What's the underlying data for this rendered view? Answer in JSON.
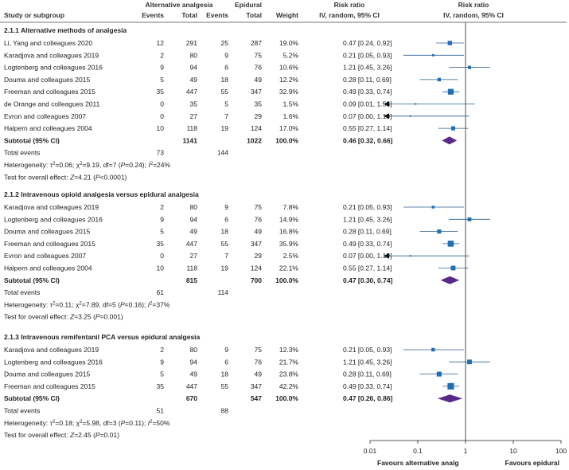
{
  "chart_data": {
    "type": "forest",
    "header": {
      "study": "Study or subgroup",
      "alt_group": "Alternative analgesia",
      "epi_group": "Epidural",
      "events": "Events",
      "total": "Total",
      "weight": "Weight",
      "rr_title": "Risk ratio",
      "rr_method": "IV, random, 95% CI",
      "plot_title": "Risk ratio",
      "plot_method": "IV, random, 95% CI"
    },
    "axis": {
      "scale": "log",
      "min": 0.01,
      "max": 100,
      "ticks": [
        0.01,
        0.1,
        1,
        10,
        100
      ],
      "tick_labels": [
        "0.01",
        "0.1",
        "1",
        "10",
        "100"
      ],
      "null_value": 1,
      "left_label": "Favours alternative analg",
      "right_label": "Favours epidural"
    },
    "subgroups": [
      {
        "title": "2.1.1 Alternative methods of analgesia",
        "studies": [
          {
            "name": "Li, Yang and colleagues 2020",
            "e1": "12",
            "n1": "291",
            "e2": "25",
            "n2": "287",
            "weight": "19.0%",
            "ci_text": "0.47 [0.24, 0.92]",
            "rr": 0.47,
            "lo": 0.24,
            "hi": 0.92,
            "w": 19.0
          },
          {
            "name": "Karadjova and colleagues 2019",
            "e1": "2",
            "n1": "80",
            "e2": "9",
            "n2": "75",
            "weight": "5.2%",
            "ci_text": "0.21 [0.05, 0.93]",
            "rr": 0.21,
            "lo": 0.05,
            "hi": 0.93,
            "w": 5.2
          },
          {
            "name": "Logtenberg and colleagues 2016",
            "e1": "9",
            "n1": "94",
            "e2": "6",
            "n2": "76",
            "weight": "10.6%",
            "ci_text": "1.21 [0.45, 3.26]",
            "rr": 1.21,
            "lo": 0.45,
            "hi": 3.26,
            "w": 10.6
          },
          {
            "name": "Douma and colleagues 2015",
            "e1": "5",
            "n1": "49",
            "e2": "18",
            "n2": "49",
            "weight": "12.2%",
            "ci_text": "0.28 [0.11, 0.69]",
            "rr": 0.28,
            "lo": 0.11,
            "hi": 0.69,
            "w": 12.2
          },
          {
            "name": "Freeman and colleagues 2015",
            "e1": "35",
            "n1": "447",
            "e2": "55",
            "n2": "347",
            "weight": "32.9%",
            "ci_text": "0.49 [0.33, 0.74]",
            "rr": 0.49,
            "lo": 0.33,
            "hi": 0.74,
            "w": 32.9
          },
          {
            "name": "de Orange and colleagues 2011",
            "e1": "0",
            "n1": "35",
            "e2": "5",
            "n2": "35",
            "weight": "1.5%",
            "ci_text": "0.09 [0.01, 1.58]",
            "rr": 0.09,
            "lo": 0.005,
            "hi": 1.58,
            "w": 1.5,
            "arrow_left": true
          },
          {
            "name": "Evron and colleagues 2007",
            "e1": "0",
            "n1": "27",
            "e2": "7",
            "n2": "29",
            "weight": "1.6%",
            "ci_text": "0.07 [0.00, 1.19]",
            "rr": 0.07,
            "lo": 0.004,
            "hi": 1.19,
            "w": 1.6,
            "arrow_left": true
          },
          {
            "name": "Halpern and colleagues 2004",
            "e1": "10",
            "n1": "118",
            "e2": "19",
            "n2": "124",
            "weight": "17.0%",
            "ci_text": "0.55 [0.27, 1.14]",
            "rr": 0.55,
            "lo": 0.27,
            "hi": 1.14,
            "w": 17.0
          }
        ],
        "subtotal": {
          "label": "Subtotal (95% CI)",
          "n1": "1141",
          "n2": "1022",
          "weight": "100.0%",
          "ci_text": "0.46 [0.32, 0.66]",
          "rr": 0.46,
          "lo": 0.32,
          "hi": 0.66
        },
        "events": {
          "label": "Total events",
          "e1": "73",
          "e2": "144"
        },
        "heterogeneity": {
          "label": "Heterogeneity: ",
          "tau2": "0.06",
          "chi2": "9.19",
          "df": "7",
          "p": "0.24",
          "i2": "24%"
        },
        "overall": {
          "label": "Test for overall effect: ",
          "z": "4.21",
          "p": "<0.0001"
        }
      },
      {
        "title": "2.1.2 Intravenous opioid analgesia versus epidural analgesia",
        "studies": [
          {
            "name": "Karadjova and colleagues 2019",
            "e1": "2",
            "n1": "80",
            "e2": "9",
            "n2": "75",
            "weight": "7.8%",
            "ci_text": "0.21 [0.05, 0.93]",
            "rr": 0.21,
            "lo": 0.05,
            "hi": 0.93,
            "w": 7.8
          },
          {
            "name": "Logtenberg and colleagues 2016",
            "e1": "9",
            "n1": "94",
            "e2": "6",
            "n2": "76",
            "weight": "14.9%",
            "ci_text": "1.21 [0.45, 3.26]",
            "rr": 1.21,
            "lo": 0.45,
            "hi": 3.26,
            "w": 14.9
          },
          {
            "name": "Douma and colleagues 2015",
            "e1": "5",
            "n1": "49",
            "e2": "18",
            "n2": "49",
            "weight": "16.8%",
            "ci_text": "0.28 [0.11, 0.69]",
            "rr": 0.28,
            "lo": 0.11,
            "hi": 0.69,
            "w": 16.8
          },
          {
            "name": "Freeman and colleagues 2015",
            "e1": "35",
            "n1": "447",
            "e2": "55",
            "n2": "347",
            "weight": "35.9%",
            "ci_text": "0.49 [0.33, 0.74]",
            "rr": 0.49,
            "lo": 0.33,
            "hi": 0.74,
            "w": 35.9
          },
          {
            "name": "Evron and colleagues 2007",
            "e1": "0",
            "n1": "27",
            "e2": "7",
            "n2": "29",
            "weight": "2.5%",
            "ci_text": "0.07 [0.00, 1.19]",
            "rr": 0.07,
            "lo": 0.004,
            "hi": 1.19,
            "w": 2.5,
            "arrow_left": true
          },
          {
            "name": "Halpern and colleagues 2004",
            "e1": "10",
            "n1": "118",
            "e2": "19",
            "n2": "124",
            "weight": "22.1%",
            "ci_text": "0.55 [0.27, 1.14]",
            "rr": 0.55,
            "lo": 0.27,
            "hi": 1.14,
            "w": 22.1
          }
        ],
        "subtotal": {
          "label": "Subtotal (95% CI)",
          "n1": "815",
          "n2": "700",
          "weight": "100.0%",
          "ci_text": "0.47 [0.30, 0.74]",
          "rr": 0.47,
          "lo": 0.3,
          "hi": 0.74
        },
        "events": {
          "label": "Total events",
          "e1": "61",
          "e2": "114"
        },
        "heterogeneity": {
          "label": "Heterogeneity: ",
          "tau2": "0.11",
          "chi2": "7.89",
          "df": "5",
          "p": "0.16",
          "i2": "37%"
        },
        "overall": {
          "label": "Test for overall effect: ",
          "z": "3.25",
          "p": "0.001"
        }
      },
      {
        "title": "2.1.3 Intravenous remifentanil PCA versus epidural analgesia",
        "studies": [
          {
            "name": "Karadjova and colleagues 2019",
            "e1": "2",
            "n1": "80",
            "e2": "9",
            "n2": "75",
            "weight": "12.3%",
            "ci_text": "0.21 [0.05, 0.93]",
            "rr": 0.21,
            "lo": 0.05,
            "hi": 0.93,
            "w": 12.3
          },
          {
            "name": "Logtenberg and colleagues 2016",
            "e1": "9",
            "n1": "94",
            "e2": "6",
            "n2": "76",
            "weight": "21.7%",
            "ci_text": "1.21 [0.45, 3.26]",
            "rr": 1.21,
            "lo": 0.45,
            "hi": 3.26,
            "w": 21.7
          },
          {
            "name": "Douma and colleagues 2015",
            "e1": "5",
            "n1": "49",
            "e2": "18",
            "n2": "49",
            "weight": "23.8%",
            "ci_text": "0.28 [0.11, 0.69]",
            "rr": 0.28,
            "lo": 0.11,
            "hi": 0.69,
            "w": 23.8
          },
          {
            "name": "Freeman and colleagues 2015",
            "e1": "35",
            "n1": "447",
            "e2": "55",
            "n2": "347",
            "weight": "42.2%",
            "ci_text": "0.49 [0.33, 0.74]",
            "rr": 0.49,
            "lo": 0.33,
            "hi": 0.74,
            "w": 42.2
          }
        ],
        "subtotal": {
          "label": "Subtotal (95% CI)",
          "n1": "670",
          "n2": "547",
          "weight": "100.0%",
          "ci_text": "0.47 [0.26, 0.86]",
          "rr": 0.47,
          "lo": 0.26,
          "hi": 0.86
        },
        "events": {
          "label": "Total events",
          "e1": "51",
          "e2": "88"
        },
        "heterogeneity": {
          "label": "Heterogeneity: ",
          "tau2": "0.18",
          "chi2": "5.98",
          "df": "3",
          "p": "0.11",
          "i2": "50%"
        },
        "overall": {
          "label": "Test for overall effect: ",
          "z": "2.45",
          "p": "0.01"
        }
      }
    ],
    "colors": {
      "square": "#1f6fb2",
      "diamond": "#5a2a8a",
      "ci_line": "#2a5f8f",
      "axis": "#222222",
      "rule": "#444444"
    }
  }
}
